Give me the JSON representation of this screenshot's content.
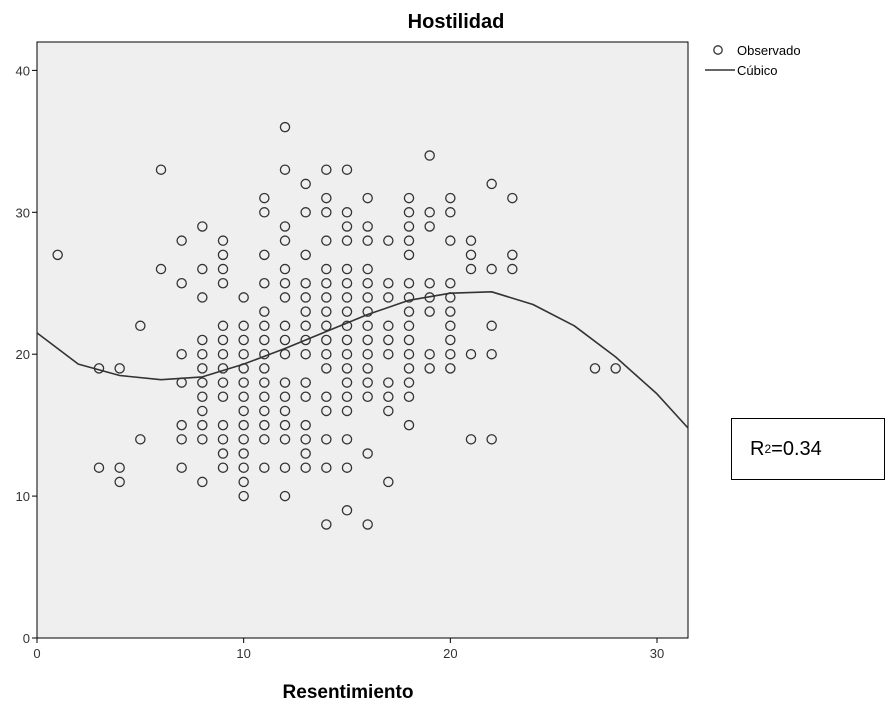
{
  "chart_data": {
    "type": "scatter",
    "title": "Hostilidad",
    "xlabel": "Resentimiento",
    "ylabel": "",
    "xlim": [
      0,
      31.5
    ],
    "ylim": [
      0,
      42
    ],
    "xticks": [
      "0",
      "10",
      "20",
      "30"
    ],
    "yticks": [
      "0",
      "10",
      "20",
      "30",
      "40"
    ],
    "grid": false,
    "legend_position": "top-right outside",
    "plot_background": "#efefef",
    "series": [
      {
        "name": "Observado",
        "type": "scatter",
        "points": [
          [
            1,
            27
          ],
          [
            3,
            19
          ],
          [
            3,
            12
          ],
          [
            4,
            19
          ],
          [
            4,
            12
          ],
          [
            4,
            11
          ],
          [
            5,
            22
          ],
          [
            5,
            14
          ],
          [
            6,
            33
          ],
          [
            6,
            26
          ],
          [
            7,
            28
          ],
          [
            7,
            25
          ],
          [
            7,
            20
          ],
          [
            7,
            18
          ],
          [
            7,
            15
          ],
          [
            7,
            14
          ],
          [
            7,
            12
          ],
          [
            8,
            29
          ],
          [
            8,
            26
          ],
          [
            8,
            24
          ],
          [
            8,
            21
          ],
          [
            8,
            20
          ],
          [
            8,
            19
          ],
          [
            8,
            18
          ],
          [
            8,
            17
          ],
          [
            8,
            16
          ],
          [
            8,
            15
          ],
          [
            8,
            14
          ],
          [
            8,
            11
          ],
          [
            9,
            28
          ],
          [
            9,
            27
          ],
          [
            9,
            26
          ],
          [
            9,
            25
          ],
          [
            9,
            22
          ],
          [
            9,
            21
          ],
          [
            9,
            20
          ],
          [
            9,
            19
          ],
          [
            9,
            18
          ],
          [
            9,
            17
          ],
          [
            9,
            15
          ],
          [
            9,
            14
          ],
          [
            9,
            13
          ],
          [
            9,
            12
          ],
          [
            10,
            24
          ],
          [
            10,
            22
          ],
          [
            10,
            21
          ],
          [
            10,
            20
          ],
          [
            10,
            19
          ],
          [
            10,
            18
          ],
          [
            10,
            17
          ],
          [
            10,
            16
          ],
          [
            10,
            15
          ],
          [
            10,
            14
          ],
          [
            10,
            13
          ],
          [
            10,
            12
          ],
          [
            10,
            11
          ],
          [
            10,
            10
          ],
          [
            11,
            31
          ],
          [
            11,
            30
          ],
          [
            11,
            27
          ],
          [
            11,
            25
          ],
          [
            11,
            23
          ],
          [
            11,
            22
          ],
          [
            11,
            21
          ],
          [
            11,
            20
          ],
          [
            11,
            19
          ],
          [
            11,
            18
          ],
          [
            11,
            17
          ],
          [
            11,
            16
          ],
          [
            11,
            15
          ],
          [
            11,
            14
          ],
          [
            11,
            12
          ],
          [
            12,
            36
          ],
          [
            12,
            33
          ],
          [
            12,
            29
          ],
          [
            12,
            28
          ],
          [
            12,
            26
          ],
          [
            12,
            25
          ],
          [
            12,
            24
          ],
          [
            12,
            22
          ],
          [
            12,
            21
          ],
          [
            12,
            20
          ],
          [
            12,
            18
          ],
          [
            12,
            17
          ],
          [
            12,
            16
          ],
          [
            12,
            15
          ],
          [
            12,
            14
          ],
          [
            12,
            12
          ],
          [
            12,
            10
          ],
          [
            13,
            32
          ],
          [
            13,
            30
          ],
          [
            13,
            27
          ],
          [
            13,
            25
          ],
          [
            13,
            24
          ],
          [
            13,
            23
          ],
          [
            13,
            22
          ],
          [
            13,
            21
          ],
          [
            13,
            20
          ],
          [
            13,
            18
          ],
          [
            13,
            17
          ],
          [
            13,
            15
          ],
          [
            13,
            14
          ],
          [
            13,
            13
          ],
          [
            13,
            12
          ],
          [
            14,
            33
          ],
          [
            14,
            31
          ],
          [
            14,
            30
          ],
          [
            14,
            28
          ],
          [
            14,
            26
          ],
          [
            14,
            25
          ],
          [
            14,
            24
          ],
          [
            14,
            23
          ],
          [
            14,
            22
          ],
          [
            14,
            21
          ],
          [
            14,
            20
          ],
          [
            14,
            19
          ],
          [
            14,
            17
          ],
          [
            14,
            16
          ],
          [
            14,
            14
          ],
          [
            14,
            12
          ],
          [
            14,
            8
          ],
          [
            15,
            33
          ],
          [
            15,
            30
          ],
          [
            15,
            29
          ],
          [
            15,
            28
          ],
          [
            15,
            26
          ],
          [
            15,
            25
          ],
          [
            15,
            24
          ],
          [
            15,
            23
          ],
          [
            15,
            22
          ],
          [
            15,
            21
          ],
          [
            15,
            20
          ],
          [
            15,
            19
          ],
          [
            15,
            18
          ],
          [
            15,
            17
          ],
          [
            15,
            16
          ],
          [
            15,
            14
          ],
          [
            15,
            12
          ],
          [
            15,
            9
          ],
          [
            16,
            31
          ],
          [
            16,
            29
          ],
          [
            16,
            28
          ],
          [
            16,
            26
          ],
          [
            16,
            25
          ],
          [
            16,
            24
          ],
          [
            16,
            23
          ],
          [
            16,
            22
          ],
          [
            16,
            21
          ],
          [
            16,
            20
          ],
          [
            16,
            19
          ],
          [
            16,
            18
          ],
          [
            16,
            17
          ],
          [
            16,
            13
          ],
          [
            16,
            8
          ],
          [
            17,
            28
          ],
          [
            17,
            25
          ],
          [
            17,
            24
          ],
          [
            17,
            22
          ],
          [
            17,
            21
          ],
          [
            17,
            20
          ],
          [
            17,
            18
          ],
          [
            17,
            17
          ],
          [
            17,
            16
          ],
          [
            17,
            11
          ],
          [
            18,
            31
          ],
          [
            18,
            30
          ],
          [
            18,
            29
          ],
          [
            18,
            28
          ],
          [
            18,
            27
          ],
          [
            18,
            25
          ],
          [
            18,
            24
          ],
          [
            18,
            23
          ],
          [
            18,
            22
          ],
          [
            18,
            21
          ],
          [
            18,
            20
          ],
          [
            18,
            19
          ],
          [
            18,
            18
          ],
          [
            18,
            17
          ],
          [
            18,
            15
          ],
          [
            19,
            34
          ],
          [
            19,
            30
          ],
          [
            19,
            29
          ],
          [
            19,
            25
          ],
          [
            19,
            24
          ],
          [
            19,
            23
          ],
          [
            19,
            20
          ],
          [
            19,
            19
          ],
          [
            20,
            31
          ],
          [
            20,
            30
          ],
          [
            20,
            28
          ],
          [
            20,
            25
          ],
          [
            20,
            24
          ],
          [
            20,
            23
          ],
          [
            20,
            22
          ],
          [
            20,
            21
          ],
          [
            20,
            20
          ],
          [
            20,
            19
          ],
          [
            21,
            28
          ],
          [
            21,
            27
          ],
          [
            21,
            26
          ],
          [
            21,
            20
          ],
          [
            21,
            14
          ],
          [
            22,
            32
          ],
          [
            22,
            26
          ],
          [
            22,
            22
          ],
          [
            22,
            20
          ],
          [
            22,
            14
          ],
          [
            23,
            31
          ],
          [
            23,
            27
          ],
          [
            23,
            26
          ],
          [
            27,
            19
          ],
          [
            28,
            19
          ]
        ]
      },
      {
        "name": "Cúbico",
        "type": "line",
        "points": [
          [
            0,
            21.5
          ],
          [
            2,
            19.3
          ],
          [
            4,
            18.5
          ],
          [
            6,
            18.2
          ],
          [
            8,
            18.4
          ],
          [
            10,
            19.3
          ],
          [
            12,
            20.4
          ],
          [
            14,
            21.6
          ],
          [
            16,
            22.8
          ],
          [
            18,
            23.8
          ],
          [
            20,
            24.3
          ],
          [
            22,
            24.4
          ],
          [
            24,
            23.5
          ],
          [
            26,
            22
          ],
          [
            28,
            19.8
          ],
          [
            30,
            17.2
          ],
          [
            31.5,
            14.8
          ]
        ]
      }
    ],
    "annotation": {
      "prefix": "R",
      "superscript": "2",
      "suffix": "=0.34"
    }
  }
}
